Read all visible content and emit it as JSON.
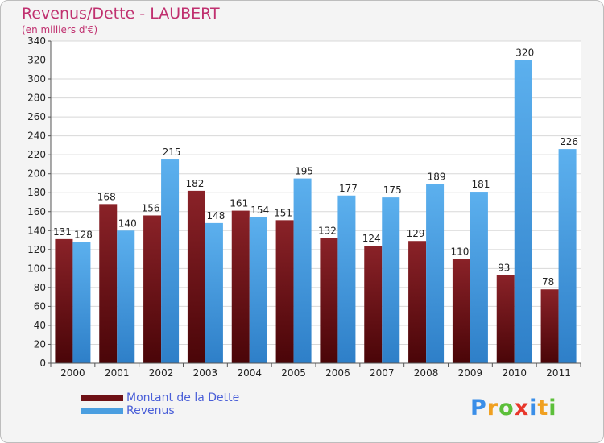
{
  "header": {
    "title": "Revenus/Dette - LAUBERT",
    "subtitle": "(en milliers d'€)"
  },
  "logo": {
    "text": "Proxiti",
    "letters": [
      "P",
      "r",
      "o",
      "x",
      "i",
      "t",
      "i"
    ],
    "colors": [
      "#3a8ee8",
      "#f0a020",
      "#5cbf3a",
      "#e8362a",
      "#3a8ee8",
      "#f0a020",
      "#5cbf3a"
    ]
  },
  "colors": {
    "dette": "#6e1015",
    "revenus": "#4a9ee0",
    "title": "#c0306f"
  },
  "chart_data": {
    "type": "bar",
    "title": "Revenus/Dette - LAUBERT",
    "subtitle": "(en milliers d'€)",
    "xlabel": "",
    "ylabel": "",
    "categories": [
      "2000",
      "2001",
      "2002",
      "2003",
      "2004",
      "2005",
      "2006",
      "2007",
      "2008",
      "2009",
      "2010",
      "2011"
    ],
    "series": [
      {
        "name": "Montant de la Dette",
        "values": [
          131,
          168,
          156,
          182,
          161,
          151,
          132,
          124,
          129,
          110,
          93,
          78
        ]
      },
      {
        "name": "Revenus",
        "values": [
          128,
          140,
          215,
          148,
          154,
          195,
          177,
          175,
          189,
          181,
          320,
          226
        ]
      }
    ],
    "ylim": [
      0,
      340
    ],
    "yticks": [
      0,
      20,
      40,
      60,
      80,
      100,
      120,
      140,
      160,
      180,
      200,
      220,
      240,
      260,
      280,
      300,
      320,
      340
    ],
    "grid": true,
    "legend": "bottom-left"
  }
}
